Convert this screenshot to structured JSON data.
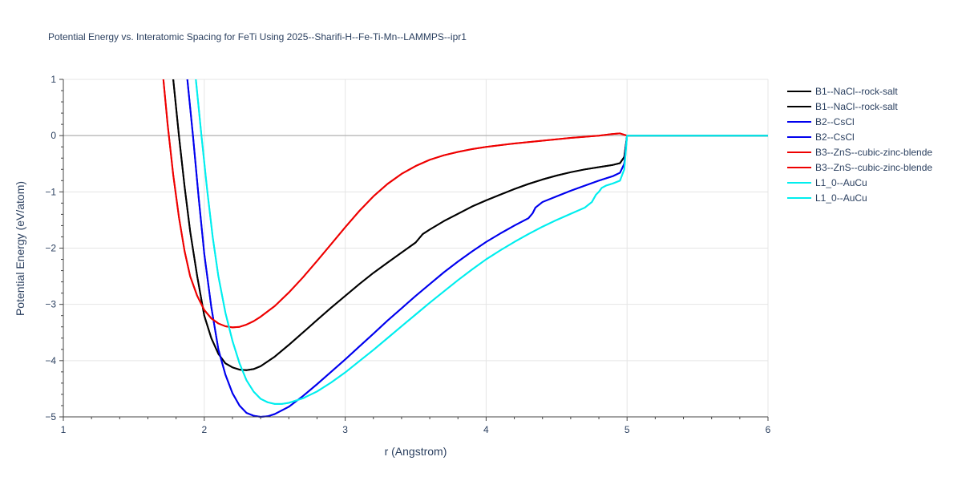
{
  "chart_data": {
    "type": "line",
    "title": "Potential Energy vs. Interatomic Spacing for FeTi Using 2025--Sharifi-H--Fe-Ti-Mn--LAMMPS--ipr1",
    "xlabel": "r (Angstrom)",
    "ylabel": "Potential Energy (eV/atom)",
    "xlim": [
      1,
      6
    ],
    "ylim": [
      -5,
      1
    ],
    "xticks": [
      1,
      2,
      3,
      4,
      5,
      6
    ],
    "xtick_labels": [
      "1",
      "2",
      "3",
      "4",
      "5",
      "6"
    ],
    "yticks": [
      1,
      0,
      -1,
      -2,
      -3,
      -4,
      -5
    ],
    "ytick_labels": [
      "1",
      "0",
      "−1",
      "−2",
      "−3",
      "−4",
      "−5"
    ],
    "grid": true,
    "legend_position": "top-right",
    "series": [
      {
        "name": "B1--NaCl--rock-salt",
        "color": "#000000",
        "x": [
          1.78,
          1.82,
          1.86,
          1.9,
          1.95,
          2.0,
          2.05,
          2.1,
          2.15,
          2.2,
          2.25,
          2.3,
          2.35,
          2.4,
          2.5,
          2.6,
          2.7,
          2.8,
          2.9,
          3.0,
          3.1,
          3.2,
          3.3,
          3.4,
          3.5,
          3.55,
          3.6,
          3.7,
          3.8,
          3.9,
          4.0,
          4.1,
          4.2,
          4.3,
          4.4,
          4.5,
          4.6,
          4.7,
          4.8,
          4.9,
          4.95,
          4.98,
          5.0,
          5.5,
          6.0
        ],
        "y": [
          1.0,
          0.0,
          -0.9,
          -1.7,
          -2.5,
          -3.2,
          -3.6,
          -3.88,
          -4.05,
          -4.12,
          -4.16,
          -4.17,
          -4.15,
          -4.1,
          -3.93,
          -3.72,
          -3.5,
          -3.28,
          -3.06,
          -2.85,
          -2.64,
          -2.44,
          -2.26,
          -2.08,
          -1.9,
          -1.75,
          -1.67,
          -1.52,
          -1.39,
          -1.26,
          -1.15,
          -1.05,
          -0.95,
          -0.86,
          -0.78,
          -0.71,
          -0.65,
          -0.6,
          -0.56,
          -0.52,
          -0.49,
          -0.38,
          0.0,
          0.0,
          0.0
        ]
      },
      {
        "name": "B1--NaCl--rock-salt",
        "color": "#000000",
        "x": [
          1.78,
          1.82,
          1.86,
          1.9,
          1.95,
          2.0,
          2.05,
          2.1,
          2.15,
          2.2,
          2.25,
          2.3,
          2.35,
          2.4,
          2.5,
          2.6,
          2.7,
          2.8,
          2.9,
          3.0,
          3.1,
          3.2,
          3.3,
          3.4,
          3.5,
          3.55,
          3.6,
          3.7,
          3.8,
          3.9,
          4.0,
          4.1,
          4.2,
          4.3,
          4.4,
          4.5,
          4.6,
          4.7,
          4.8,
          4.9,
          4.95,
          4.98,
          5.0,
          5.5,
          6.0
        ],
        "y": [
          1.0,
          0.0,
          -0.9,
          -1.7,
          -2.5,
          -3.2,
          -3.6,
          -3.88,
          -4.05,
          -4.12,
          -4.16,
          -4.17,
          -4.15,
          -4.1,
          -3.93,
          -3.72,
          -3.5,
          -3.28,
          -3.06,
          -2.85,
          -2.64,
          -2.44,
          -2.26,
          -2.08,
          -1.9,
          -1.75,
          -1.67,
          -1.52,
          -1.39,
          -1.26,
          -1.15,
          -1.05,
          -0.95,
          -0.86,
          -0.78,
          -0.71,
          -0.65,
          -0.6,
          -0.56,
          -0.52,
          -0.49,
          -0.38,
          0.0,
          0.0,
          0.0
        ]
      },
      {
        "name": "B2--CsCl",
        "color": "#0000ee",
        "x": [
          1.88,
          1.92,
          1.96,
          2.0,
          2.05,
          2.1,
          2.15,
          2.2,
          2.25,
          2.3,
          2.35,
          2.4,
          2.45,
          2.5,
          2.6,
          2.7,
          2.8,
          2.9,
          3.0,
          3.1,
          3.2,
          3.3,
          3.4,
          3.5,
          3.6,
          3.7,
          3.8,
          3.9,
          4.0,
          4.1,
          4.2,
          4.3,
          4.33,
          4.35,
          4.4,
          4.5,
          4.6,
          4.7,
          4.8,
          4.9,
          4.95,
          4.98,
          5.0,
          5.5,
          6.0
        ],
        "y": [
          1.0,
          0.0,
          -1.1,
          -2.1,
          -3.05,
          -3.8,
          -4.25,
          -4.58,
          -4.8,
          -4.93,
          -4.98,
          -5.0,
          -4.99,
          -4.95,
          -4.82,
          -4.63,
          -4.42,
          -4.2,
          -3.98,
          -3.75,
          -3.52,
          -3.29,
          -3.07,
          -2.85,
          -2.64,
          -2.43,
          -2.24,
          -2.06,
          -1.89,
          -1.74,
          -1.6,
          -1.47,
          -1.38,
          -1.28,
          -1.18,
          -1.08,
          -0.98,
          -0.89,
          -0.8,
          -0.72,
          -0.66,
          -0.5,
          0.0,
          0.0,
          0.0
        ]
      },
      {
        "name": "B2--CsCl",
        "color": "#0000ee",
        "x": [
          1.88,
          1.92,
          1.96,
          2.0,
          2.05,
          2.1,
          2.15,
          2.2,
          2.25,
          2.3,
          2.35,
          2.4,
          2.45,
          2.5,
          2.6,
          2.7,
          2.8,
          2.9,
          3.0,
          3.1,
          3.2,
          3.3,
          3.4,
          3.5,
          3.6,
          3.7,
          3.8,
          3.9,
          4.0,
          4.1,
          4.2,
          4.3,
          4.33,
          4.35,
          4.4,
          4.5,
          4.6,
          4.7,
          4.8,
          4.9,
          4.95,
          4.98,
          5.0,
          5.5,
          6.0
        ],
        "y": [
          1.0,
          0.0,
          -1.1,
          -2.1,
          -3.05,
          -3.8,
          -4.25,
          -4.58,
          -4.8,
          -4.93,
          -4.98,
          -5.0,
          -4.99,
          -4.95,
          -4.82,
          -4.63,
          -4.42,
          -4.2,
          -3.98,
          -3.75,
          -3.52,
          -3.29,
          -3.07,
          -2.85,
          -2.64,
          -2.43,
          -2.24,
          -2.06,
          -1.89,
          -1.74,
          -1.6,
          -1.47,
          -1.38,
          -1.28,
          -1.18,
          -1.08,
          -0.98,
          -0.89,
          -0.8,
          -0.72,
          -0.66,
          -0.5,
          0.0,
          0.0,
          0.0
        ]
      },
      {
        "name": "B3--ZnS--cubic-zinc-blende",
        "color": "#ee0000",
        "x": [
          1.71,
          1.74,
          1.78,
          1.82,
          1.86,
          1.9,
          1.95,
          2.0,
          2.05,
          2.1,
          2.15,
          2.2,
          2.25,
          2.3,
          2.35,
          2.4,
          2.5,
          2.6,
          2.7,
          2.8,
          2.9,
          3.0,
          3.1,
          3.2,
          3.3,
          3.4,
          3.5,
          3.6,
          3.7,
          3.8,
          3.9,
          4.0,
          4.2,
          4.4,
          4.6,
          4.8,
          4.9,
          4.95,
          5.0,
          5.5,
          6.0
        ],
        "y": [
          1.0,
          0.2,
          -0.7,
          -1.45,
          -2.05,
          -2.5,
          -2.85,
          -3.1,
          -3.25,
          -3.34,
          -3.39,
          -3.41,
          -3.4,
          -3.36,
          -3.3,
          -3.22,
          -3.03,
          -2.79,
          -2.52,
          -2.23,
          -1.93,
          -1.63,
          -1.34,
          -1.08,
          -0.86,
          -0.68,
          -0.54,
          -0.43,
          -0.35,
          -0.29,
          -0.24,
          -0.2,
          -0.14,
          -0.09,
          -0.04,
          0.0,
          0.03,
          0.04,
          0.0,
          0.0,
          0.0
        ]
      },
      {
        "name": "B3--ZnS--cubic-zinc-blende",
        "color": "#ee0000",
        "x": [
          1.71,
          1.74,
          1.78,
          1.82,
          1.86,
          1.9,
          1.95,
          2.0,
          2.05,
          2.1,
          2.15,
          2.2,
          2.25,
          2.3,
          2.35,
          2.4,
          2.5,
          2.6,
          2.7,
          2.8,
          2.9,
          3.0,
          3.1,
          3.2,
          3.3,
          3.4,
          3.5,
          3.6,
          3.7,
          3.8,
          3.9,
          4.0,
          4.2,
          4.4,
          4.6,
          4.8,
          4.9,
          4.95,
          5.0,
          5.5,
          6.0
        ],
        "y": [
          1.0,
          0.2,
          -0.7,
          -1.45,
          -2.05,
          -2.5,
          -2.85,
          -3.1,
          -3.25,
          -3.34,
          -3.39,
          -3.41,
          -3.4,
          -3.36,
          -3.3,
          -3.22,
          -3.03,
          -2.79,
          -2.52,
          -2.23,
          -1.93,
          -1.63,
          -1.34,
          -1.08,
          -0.86,
          -0.68,
          -0.54,
          -0.43,
          -0.35,
          -0.29,
          -0.24,
          -0.2,
          -0.14,
          -0.09,
          -0.04,
          0.0,
          0.03,
          0.04,
          0.0,
          0.0,
          0.0
        ]
      },
      {
        "name": "L1_0--AuCu",
        "color": "#00eeee",
        "x": [
          1.94,
          1.98,
          2.02,
          2.06,
          2.1,
          2.15,
          2.2,
          2.25,
          2.3,
          2.35,
          2.4,
          2.45,
          2.5,
          2.55,
          2.6,
          2.7,
          2.8,
          2.9,
          3.0,
          3.1,
          3.2,
          3.3,
          3.4,
          3.5,
          3.6,
          3.7,
          3.8,
          3.9,
          4.0,
          4.1,
          4.2,
          4.3,
          4.4,
          4.5,
          4.6,
          4.7,
          4.75,
          4.78,
          4.8,
          4.82,
          4.85,
          4.9,
          4.95,
          4.98,
          5.0,
          5.5,
          6.0
        ],
        "y": [
          1.0,
          0.0,
          -0.95,
          -1.8,
          -2.5,
          -3.15,
          -3.65,
          -4.05,
          -4.35,
          -4.55,
          -4.68,
          -4.74,
          -4.77,
          -4.77,
          -4.75,
          -4.67,
          -4.55,
          -4.39,
          -4.21,
          -4.01,
          -3.81,
          -3.6,
          -3.39,
          -3.18,
          -2.97,
          -2.77,
          -2.57,
          -2.38,
          -2.2,
          -2.04,
          -1.89,
          -1.75,
          -1.62,
          -1.5,
          -1.39,
          -1.28,
          -1.18,
          -1.05,
          -1.0,
          -0.93,
          -0.89,
          -0.85,
          -0.8,
          -0.6,
          0.0,
          0.0,
          0.0
        ]
      },
      {
        "name": "L1_0--AuCu",
        "color": "#00eeee",
        "x": [
          1.94,
          1.98,
          2.02,
          2.06,
          2.1,
          2.15,
          2.2,
          2.25,
          2.3,
          2.35,
          2.4,
          2.45,
          2.5,
          2.55,
          2.6,
          2.7,
          2.8,
          2.9,
          3.0,
          3.1,
          3.2,
          3.3,
          3.4,
          3.5,
          3.6,
          3.7,
          3.8,
          3.9,
          4.0,
          4.1,
          4.2,
          4.3,
          4.4,
          4.5,
          4.6,
          4.7,
          4.75,
          4.78,
          4.8,
          4.82,
          4.85,
          4.9,
          4.95,
          4.98,
          5.0,
          5.5,
          6.0
        ],
        "y": [
          1.0,
          0.0,
          -0.95,
          -1.8,
          -2.5,
          -3.15,
          -3.65,
          -4.05,
          -4.35,
          -4.55,
          -4.68,
          -4.74,
          -4.77,
          -4.77,
          -4.75,
          -4.67,
          -4.55,
          -4.39,
          -4.21,
          -4.01,
          -3.81,
          -3.6,
          -3.39,
          -3.18,
          -2.97,
          -2.77,
          -2.57,
          -2.38,
          -2.2,
          -2.04,
          -1.89,
          -1.75,
          -1.62,
          -1.5,
          -1.39,
          -1.28,
          -1.18,
          -1.05,
          -1.0,
          -0.93,
          -0.89,
          -0.85,
          -0.8,
          -0.6,
          0.0,
          0.0,
          0.0
        ]
      }
    ]
  }
}
